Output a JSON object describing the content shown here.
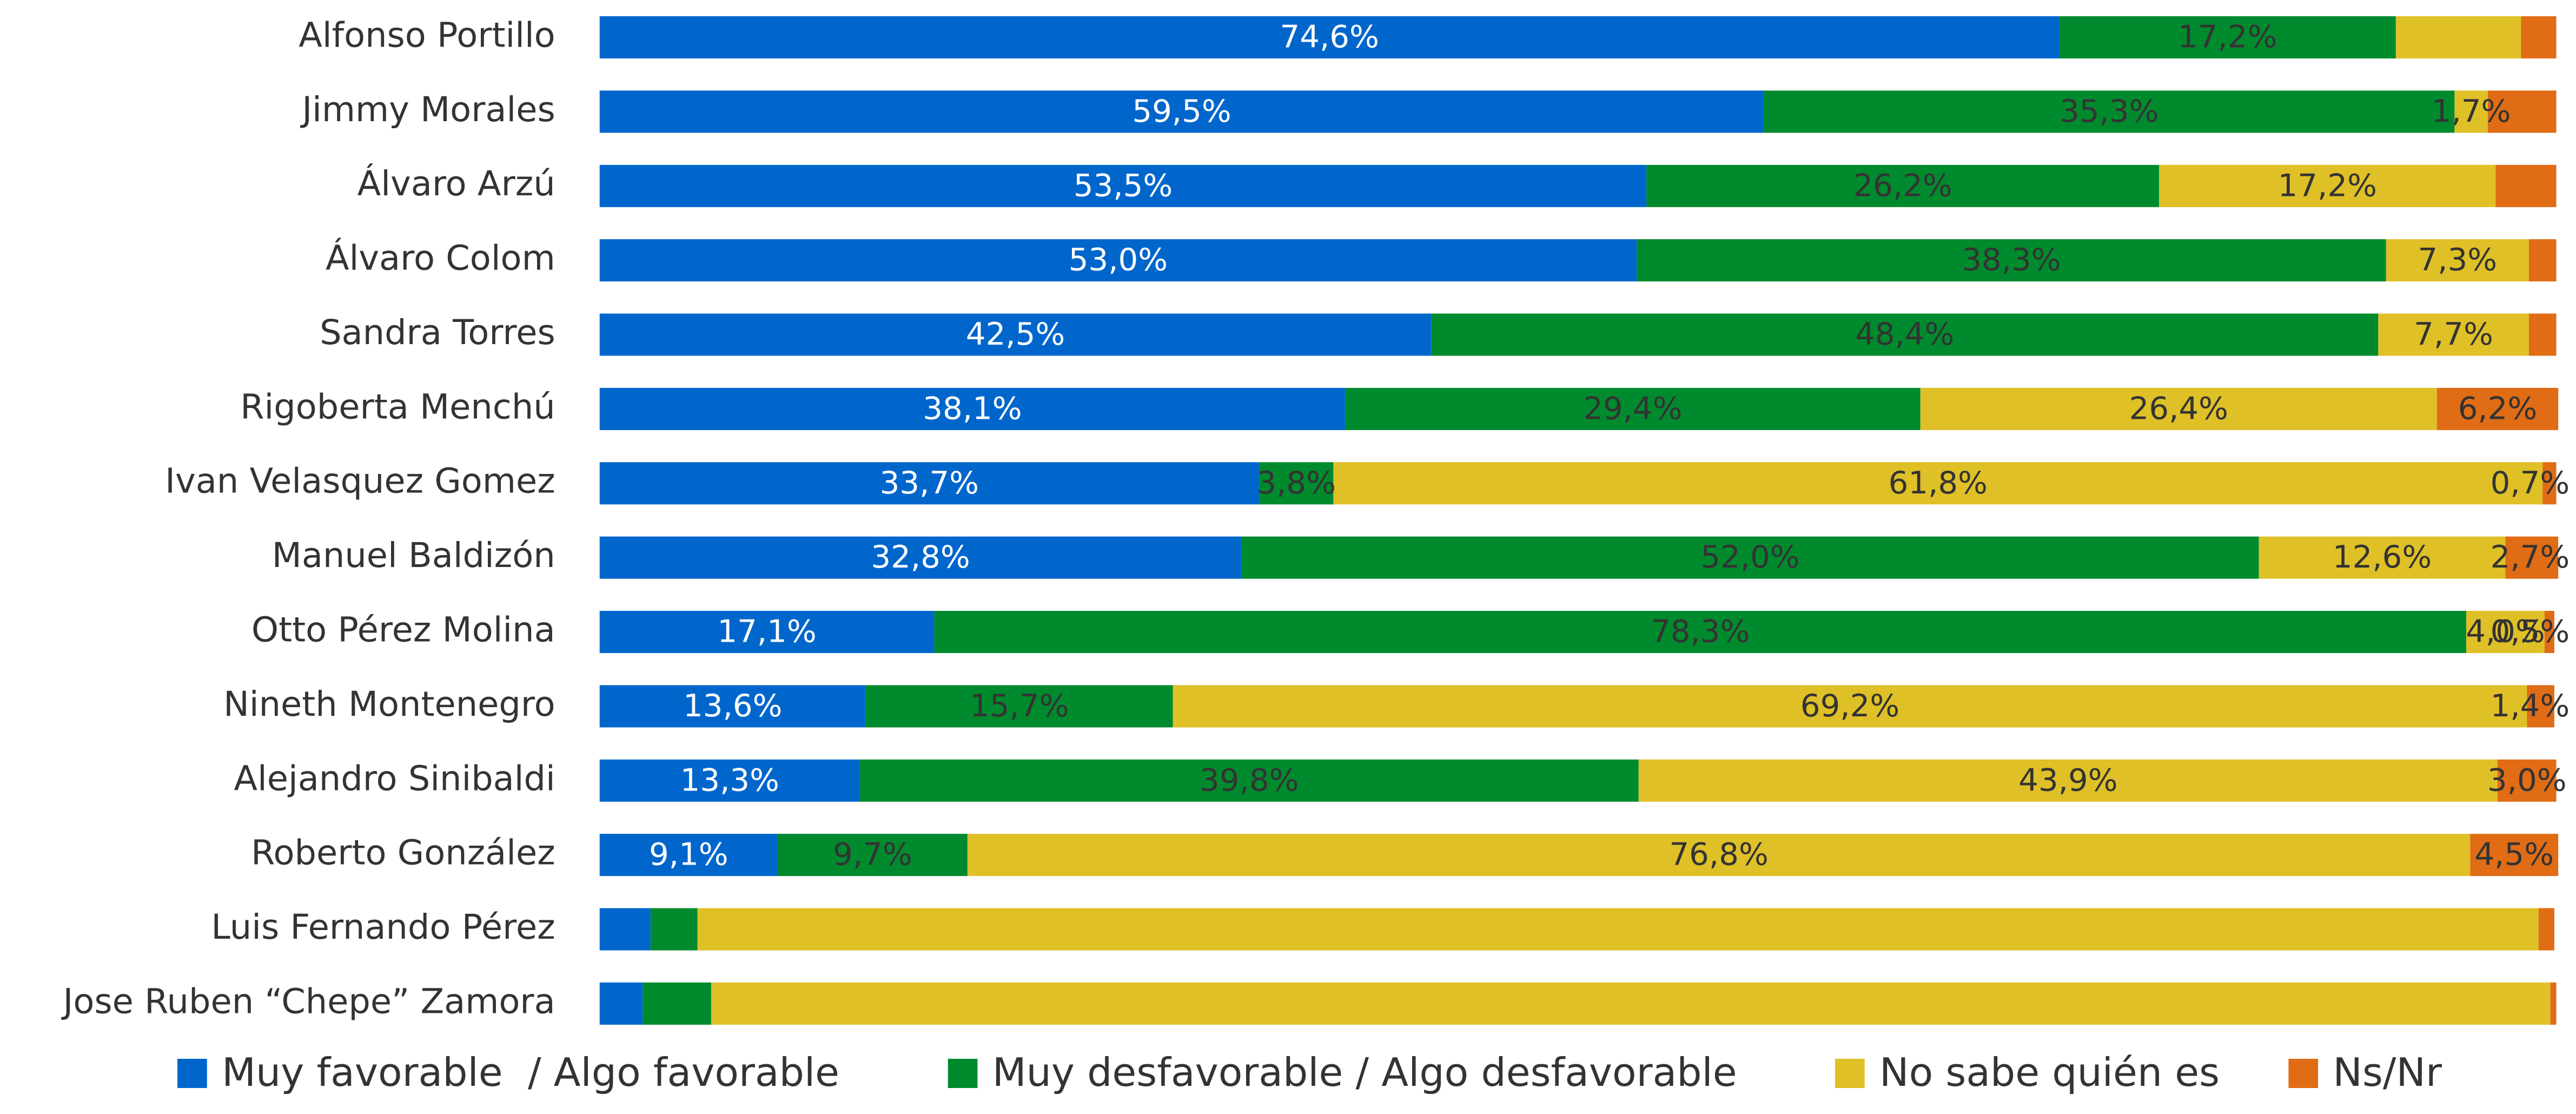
{
  "chart_data": {
    "type": "stacked_barh",
    "categories": [
      "Alfonso Portillo",
      "Jimmy Morales",
      "Álvaro Arzú",
      "Álvaro Colom",
      "Sandra Torres",
      "Rigoberta Menchú",
      "Ivan Velasquez Gomez",
      "Manuel Baldizón",
      "Otto Pérez Molina",
      "Nineth Montenegro",
      "Alejandro Sinibaldi",
      "Roberto González",
      "Luis Fernando Pérez",
      "Jose Ruben “Chepe” Zamora"
    ],
    "xlim": [
      0,
      100
    ],
    "legend": "bottom",
    "series": [
      {
        "name": "Muy favorable  / Algo favorable",
        "color": "#0066cc",
        "label_color": "#ffffff",
        "values": [
          74.6,
          59.5,
          53.5,
          53.0,
          42.5,
          38.1,
          33.7,
          32.8,
          17.1,
          13.6,
          13.3,
          9.1,
          2.6,
          2.2
        ],
        "value_labels": [
          "74,6%",
          "59,5%",
          "53,5%",
          "53,0%",
          "42,5%",
          "38,1%",
          "33,7%",
          "32,8%",
          "17,1%",
          "13,6%",
          "13,3%",
          "9,1%",
          null,
          null
        ]
      },
      {
        "name": "Muy desfavorable / Algo desfavorable",
        "color": "#008a2e",
        "label_color": "#333333",
        "values": [
          17.2,
          35.3,
          26.2,
          38.3,
          48.4,
          29.4,
          3.8,
          52.0,
          78.3,
          15.7,
          39.8,
          9.7,
          2.4,
          3.5
        ],
        "value_labels": [
          "17,2%",
          "35,3%",
          "26,2%",
          "38,3%",
          "48,4%",
          "29,4%",
          "3,8%",
          "52,0%",
          "78,3%",
          "15,7%",
          "39,8%",
          "9,7%",
          null,
          null
        ]
      },
      {
        "name": "No sabe quién es",
        "color": "#dfc027",
        "label_color": "#333333",
        "values": [
          6.4,
          1.7,
          17.2,
          7.3,
          7.7,
          26.4,
          61.8,
          12.6,
          4.0,
          69.2,
          43.9,
          76.8,
          94.1,
          94.0
        ],
        "value_labels": [
          null,
          "1,7%",
          "17,2%",
          "7,3%",
          "7,7%",
          "26,4%",
          "61,8%",
          "12,6%",
          "4,0%",
          "69,2%",
          "43,9%",
          "76,8%",
          null,
          null
        ]
      },
      {
        "name": "Ns/Nr",
        "color": "#e06c15",
        "label_color": "#333333",
        "values": [
          1.8,
          3.5,
          3.1,
          1.4,
          1.4,
          6.2,
          0.7,
          2.7,
          0.5,
          1.4,
          3.0,
          4.5,
          0.8,
          0.3
        ],
        "value_labels": [
          null,
          null,
          null,
          null,
          null,
          "6,2%",
          "0,7%",
          "2,7%",
          "0,5%",
          "1,4%",
          "3,0%",
          "4,5%",
          null,
          null
        ]
      }
    ]
  }
}
